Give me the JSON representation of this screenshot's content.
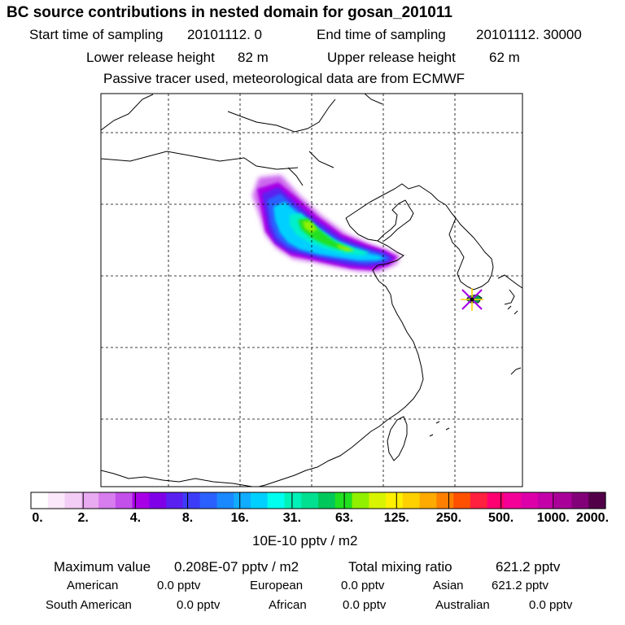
{
  "header": {
    "title": "BC  source contributions in nested domain for gosan_201011",
    "start_label": "Start time of sampling",
    "start_value": "20101112.     0",
    "end_label": "End time of sampling",
    "end_value": "20101112. 30000",
    "lower_label": "Lower release height",
    "lower_value": "82 m",
    "upper_label": "Upper release height",
    "upper_value": "62 m",
    "note": "Passive tracer used, meteorological data are from ECMWF"
  },
  "colorbar": {
    "tick_labels": [
      "0.",
      "2.",
      "4.",
      "8.",
      "16.",
      "31.",
      "63.",
      "125.",
      "250.",
      "500.",
      "1000.",
      "2000."
    ],
    "unit": "10E-10 pptv / m2",
    "colors": [
      "#ffffff",
      "#fbe8fb",
      "#f3cdf5",
      "#e8aaf0",
      "#d77ded",
      "#c350ea",
      "#a800e6",
      "#7f00e8",
      "#5a20f0",
      "#3c3cf8",
      "#2a60ff",
      "#1a88ff",
      "#10acff",
      "#00d0ff",
      "#00ffee",
      "#00f2b8",
      "#00e090",
      "#00c85a",
      "#20e020",
      "#90f000",
      "#d8f400",
      "#ffef00",
      "#ffd000",
      "#ffaa00",
      "#ff8000",
      "#ff5000",
      "#ff2040",
      "#ff0070",
      "#f40098",
      "#dd00a8",
      "#c400a8",
      "#a80098",
      "#820078",
      "#520048"
    ]
  },
  "stats": {
    "max_label": "Maximum value",
    "max_value": "0.208E-07 pptv / m2",
    "total_label": "Total mixing ratio",
    "total_value": "621.2 pptv",
    "american_label": "American",
    "american_value": "0.0 pptv",
    "european_label": "European",
    "european_value": "0.0 pptv",
    "asian_label": "Asian",
    "asian_value": "621.2 pptv",
    "south_american_label": "South American",
    "south_american_value": "0.0 pptv",
    "african_label": "African",
    "african_value": "0.0 pptv",
    "australian_label": "Australian",
    "australian_value": "0.0 pptv"
  },
  "map": {
    "receptor_marker": "star-icon",
    "plume_colors": [
      "#cc66ee",
      "#a800e6",
      "#5a20f0",
      "#2a60ff",
      "#00d0ff",
      "#00f0cc",
      "#20e020",
      "#90f000"
    ]
  }
}
